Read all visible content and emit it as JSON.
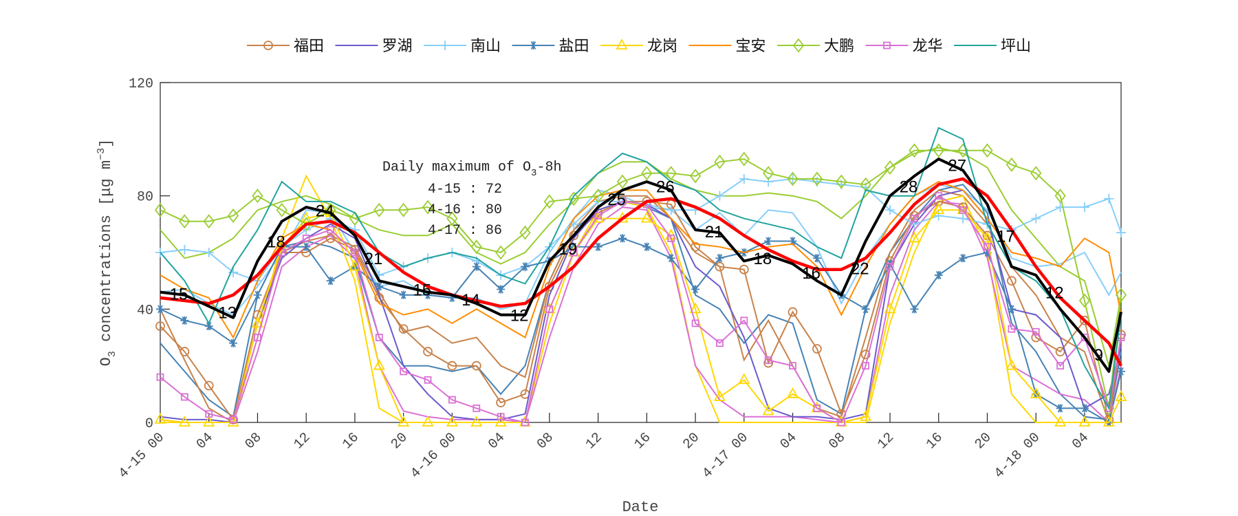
{
  "chart_data": {
    "type": "line",
    "xlabel": "Date",
    "ylabel": {
      "base": "O",
      "sub": "3",
      "mid": " concentrations [μg m",
      "sup": "−3",
      "end": "]"
    },
    "ylim": [
      0,
      120
    ],
    "yticks": [
      0,
      40,
      80,
      120
    ],
    "xlim": [
      "4-15 00",
      "4-18 07"
    ],
    "xticks": [
      {
        "at": "4-15 00",
        "label": "4-15 00"
      },
      {
        "at": "4-15 04",
        "label": "04"
      },
      {
        "at": "4-15 08",
        "label": "08"
      },
      {
        "at": "4-15 12",
        "label": "12"
      },
      {
        "at": "4-15 16",
        "label": "16"
      },
      {
        "at": "4-15 20",
        "label": "20"
      },
      {
        "at": "4-16 00",
        "label": "4-16 00"
      },
      {
        "at": "4-16 04",
        "label": "04"
      },
      {
        "at": "4-16 08",
        "label": "08"
      },
      {
        "at": "4-16 12",
        "label": "12"
      },
      {
        "at": "4-16 16",
        "label": "16"
      },
      {
        "at": "4-16 20",
        "label": "20"
      },
      {
        "at": "4-17 00",
        "label": "4-17 00"
      },
      {
        "at": "4-17 04",
        "label": "04"
      },
      {
        "at": "4-17 08",
        "label": "08"
      },
      {
        "at": "4-17 12",
        "label": "12"
      },
      {
        "at": "4-17 16",
        "label": "16"
      },
      {
        "at": "4-17 20",
        "label": "20"
      },
      {
        "at": "4-18 00",
        "label": "4-18 00"
      },
      {
        "at": "4-18 04",
        "label": "04"
      }
    ],
    "grid": false,
    "legend_position": "top",
    "x": [
      "4-15 00",
      "4-15 02",
      "4-15 04",
      "4-15 06",
      "4-15 08",
      "4-15 10",
      "4-15 12",
      "4-15 14",
      "4-15 16",
      "4-15 18",
      "4-15 20",
      "4-15 22",
      "4-16 00",
      "4-16 02",
      "4-16 04",
      "4-16 06",
      "4-16 08",
      "4-16 10",
      "4-16 12",
      "4-16 14",
      "4-16 16",
      "4-16 18",
      "4-16 20",
      "4-16 22",
      "4-17 00",
      "4-17 02",
      "4-17 04",
      "4-17 06",
      "4-17 08",
      "4-17 10",
      "4-17 12",
      "4-17 14",
      "4-17 16",
      "4-17 18",
      "4-17 20",
      "4-17 22",
      "4-18 00",
      "4-18 02",
      "4-18 04",
      "4-18 06",
      "4-18 07"
    ],
    "series": [
      {
        "name": "福田",
        "color": "#c8824a",
        "marker": "circle",
        "values": [
          34,
          25,
          13,
          1,
          38,
          60,
          60,
          65,
          61,
          44,
          33,
          25,
          20,
          20,
          7,
          10,
          48,
          66,
          74,
          78,
          78,
          77,
          62,
          55,
          54,
          21,
          39,
          26,
          3,
          24,
          57,
          73,
          78,
          76,
          66,
          50,
          30,
          25,
          36,
          1,
          31
        ]
      },
      {
        "name": "罗湖",
        "color": "#6a5acd",
        "marker": "none",
        "values": [
          2,
          1,
          1,
          0,
          35,
          58,
          65,
          70,
          65,
          45,
          20,
          10,
          2,
          1,
          1,
          3,
          45,
          65,
          75,
          78,
          77,
          72,
          55,
          48,
          30,
          5,
          2,
          2,
          1,
          3,
          55,
          70,
          80,
          82,
          72,
          40,
          38,
          30,
          5,
          10,
          27
        ]
      },
      {
        "name": "南山",
        "color": "#87cefa",
        "marker": "plus",
        "values": [
          60,
          61,
          60,
          53,
          50,
          62,
          68,
          72,
          68,
          52,
          55,
          58,
          60,
          57,
          52,
          55,
          62,
          70,
          78,
          78,
          77,
          75,
          75,
          80,
          86,
          85,
          86,
          85,
          84,
          83,
          75,
          70,
          73,
          72,
          70,
          68,
          72,
          76,
          76,
          79,
          67
        ]
      },
      {
        "name": "盐田",
        "color": "#4682b4",
        "marker": "asterisk",
        "values": [
          40,
          36,
          34,
          28,
          45,
          62,
          62,
          50,
          55,
          48,
          45,
          45,
          44,
          55,
          47,
          55,
          57,
          62,
          62,
          65,
          62,
          58,
          47,
          58,
          60,
          64,
          64,
          58,
          45,
          40,
          56,
          40,
          52,
          58,
          60,
          40,
          10,
          5,
          5,
          0,
          18
        ]
      },
      {
        "name": "龙岗",
        "color": "#ffd700",
        "marker": "triangle",
        "values": [
          1,
          0,
          0,
          0,
          35,
          62,
          72,
          74,
          55,
          20,
          0,
          0,
          0,
          0,
          0,
          0,
          40,
          60,
          72,
          72,
          72,
          66,
          40,
          9,
          15,
          4,
          10,
          5,
          0,
          2,
          40,
          65,
          75,
          75,
          65,
          20,
          10,
          0,
          0,
          0,
          9
        ]
      },
      {
        "name": "宝安",
        "color": "#ff8c00",
        "marker": "none",
        "values": [
          52,
          47,
          44,
          30,
          50,
          65,
          70,
          68,
          60,
          42,
          38,
          40,
          35,
          40,
          35,
          30,
          55,
          72,
          80,
          82,
          82,
          72,
          63,
          62,
          60,
          62,
          63,
          55,
          38,
          55,
          70,
          80,
          85,
          82,
          72,
          60,
          58,
          55,
          65,
          60,
          38
        ]
      },
      {
        "name": "大鹏",
        "color": "#9acd32",
        "marker": "diamond",
        "values": [
          75,
          71,
          71,
          73,
          80,
          75,
          70,
          75,
          72,
          75,
          75,
          76,
          72,
          62,
          60,
          67,
          78,
          79,
          80,
          85,
          88,
          88,
          87,
          92,
          93,
          88,
          86,
          86,
          85,
          84,
          90,
          96,
          96,
          96,
          96,
          91,
          88,
          80,
          43,
          5,
          45
        ]
      },
      {
        "name": "龙华",
        "color": "#da70d6",
        "marker": "square",
        "values": [
          16,
          9,
          3,
          1,
          30,
          60,
          65,
          68,
          60,
          30,
          18,
          15,
          8,
          5,
          2,
          0,
          40,
          60,
          73,
          78,
          77,
          65,
          35,
          28,
          36,
          22,
          20,
          5,
          0,
          20,
          55,
          72,
          80,
          75,
          62,
          33,
          32,
          20,
          30,
          5,
          30
        ]
      },
      {
        "name": "坪山",
        "color": "#20a39e",
        "marker": "none",
        "values": [
          60,
          50,
          35,
          55,
          68,
          85,
          78,
          78,
          74,
          60,
          55,
          58,
          60,
          58,
          52,
          49,
          62,
          80,
          88,
          95,
          92,
          85,
          82,
          75,
          72,
          70,
          68,
          62,
          58,
          82,
          80,
          80,
          104,
          100,
          70,
          55,
          50,
          40,
          20,
          5,
          38
        ]
      }
    ],
    "unmarked_lines": [
      {
        "color": "#9acd32",
        "values": [
          68,
          58,
          60,
          65,
          75,
          78,
          80,
          77,
          72,
          68,
          66,
          66,
          70,
          60,
          56,
          60,
          70,
          78,
          88,
          92,
          92,
          86,
          82,
          80,
          80,
          81,
          80,
          78,
          72,
          80,
          90,
          95,
          97,
          95,
          90,
          75,
          65,
          55,
          50,
          20,
          45
        ]
      },
      {
        "color": "#87cefa",
        "values": [
          46,
          47,
          42,
          38,
          48,
          60,
          75,
          74,
          60,
          48,
          50,
          45,
          44,
          44,
          40,
          42,
          60,
          72,
          82,
          80,
          76,
          75,
          68,
          74,
          66,
          75,
          74,
          62,
          42,
          58,
          70,
          80,
          84,
          82,
          75,
          58,
          55,
          56,
          60,
          45,
          53
        ]
      },
      {
        "color": "#4682b4",
        "values": [
          28,
          18,
          8,
          2,
          45,
          62,
          64,
          62,
          58,
          30,
          20,
          20,
          18,
          20,
          10,
          20,
          50,
          68,
          75,
          78,
          76,
          72,
          45,
          40,
          28,
          38,
          35,
          8,
          3,
          40,
          60,
          72,
          82,
          84,
          74,
          35,
          25,
          10,
          2,
          1,
          25
        ]
      },
      {
        "color": "#c8824a",
        "values": [
          40,
          22,
          5,
          0,
          35,
          60,
          64,
          66,
          62,
          46,
          32,
          34,
          28,
          30,
          20,
          16,
          50,
          68,
          78,
          80,
          80,
          72,
          60,
          55,
          22,
          36,
          20,
          5,
          2,
          30,
          60,
          75,
          82,
          80,
          70,
          55,
          45,
          30,
          25,
          0,
          30
        ]
      },
      {
        "color": "#ffd700",
        "values": [
          0,
          0,
          0,
          0,
          30,
          65,
          87,
          72,
          50,
          5,
          0,
          0,
          0,
          0,
          0,
          0,
          35,
          60,
          75,
          78,
          76,
          60,
          20,
          0,
          0,
          0,
          0,
          0,
          0,
          0,
          35,
          60,
          78,
          80,
          60,
          10,
          0,
          0,
          0,
          0,
          0
        ]
      },
      {
        "color": "#da70d6",
        "values": [
          1,
          0,
          0,
          0,
          25,
          55,
          62,
          66,
          58,
          20,
          4,
          2,
          1,
          1,
          1,
          0,
          30,
          55,
          70,
          76,
          75,
          58,
          20,
          8,
          2,
          2,
          2,
          1,
          0,
          2,
          45,
          68,
          78,
          77,
          58,
          20,
          15,
          10,
          8,
          0,
          20
        ]
      }
    ],
    "mean_line": {
      "color": "#000000",
      "values": [
        46,
        45,
        41,
        37,
        57,
        71,
        76,
        74,
        66,
        50,
        48,
        46,
        45,
        42,
        38,
        38,
        57,
        66,
        76,
        82,
        85,
        82,
        68,
        67,
        57,
        59,
        56,
        50,
        45,
        64,
        80,
        87,
        93,
        89,
        77,
        55,
        52,
        40,
        30,
        18,
        39
      ]
    },
    "smooth_line": {
      "color": "#ff0000",
      "values": [
        44,
        43,
        42,
        45,
        52,
        62,
        70,
        71,
        67,
        60,
        53,
        48,
        45,
        43,
        41,
        42,
        48,
        55,
        65,
        72,
        78,
        79,
        76,
        72,
        66,
        61,
        57,
        54,
        54,
        58,
        67,
        77,
        84,
        86,
        80,
        68,
        55,
        44,
        36,
        28,
        20
      ]
    },
    "point_labels": [
      {
        "x": "4-15 01",
        "label": "15"
      },
      {
        "x": "4-15 05",
        "label": "13"
      },
      {
        "x": "4-15 09",
        "label": "18"
      },
      {
        "x": "4-15 13",
        "label": "24"
      },
      {
        "x": "4-15 17",
        "label": "21"
      },
      {
        "x": "4-15 21",
        "label": "15"
      },
      {
        "x": "4-16 01",
        "label": "14"
      },
      {
        "x": "4-16 05",
        "label": "12"
      },
      {
        "x": "4-16 09",
        "label": "19"
      },
      {
        "x": "4-16 13",
        "label": "25"
      },
      {
        "x": "4-16 17",
        "label": "26"
      },
      {
        "x": "4-16 21",
        "label": "21"
      },
      {
        "x": "4-17 01",
        "label": "18"
      },
      {
        "x": "4-17 05",
        "label": "16"
      },
      {
        "x": "4-17 09",
        "label": "22"
      },
      {
        "x": "4-17 13",
        "label": "28"
      },
      {
        "x": "4-17 17",
        "label": "27"
      },
      {
        "x": "4-17 21",
        "label": "17"
      },
      {
        "x": "4-18 01",
        "label": "12"
      },
      {
        "x": "4-18 05",
        "label": "9"
      }
    ],
    "annotation": {
      "title_base": "Daily maximum of O",
      "title_sub": "3",
      "title_end": "-8h",
      "lines": [
        "4-15 : 72",
        "4-16 : 80",
        "4-17 : 86"
      ]
    }
  }
}
